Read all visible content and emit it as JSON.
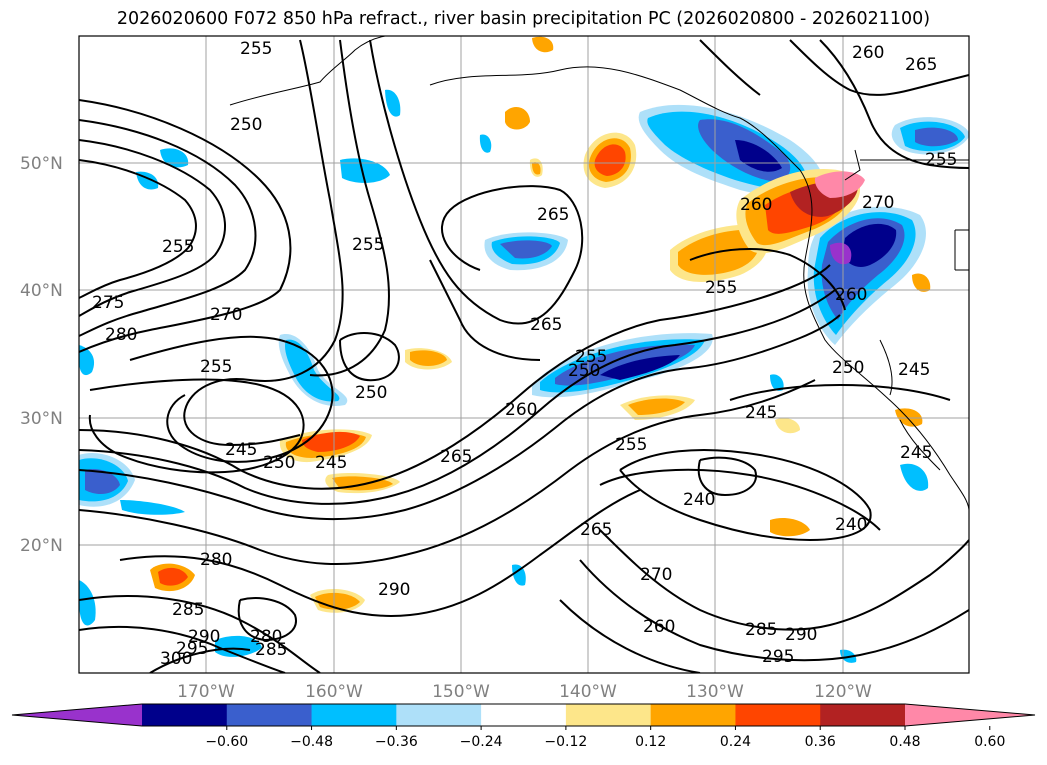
{
  "title": "2026020600 F072 850 hPa refract., river basin precipitation PC (2026020800 - 2026021100)",
  "lon_labels": [
    "170°W",
    "160°W",
    "150°W",
    "140°W",
    "130°W",
    "120°W"
  ],
  "lat_labels": [
    "50°N",
    "40°N",
    "30°N",
    "20°N"
  ],
  "contour_labels": [
    "255",
    "250",
    "260",
    "265",
    "265",
    "255",
    "255",
    "270",
    "280",
    "275",
    "250",
    "255",
    "245",
    "250",
    "245",
    "265",
    "250",
    "255",
    "260",
    "265",
    "240",
    "245",
    "255",
    "280",
    "285",
    "290",
    "295",
    "300",
    "290",
    "280",
    "285",
    "270",
    "260",
    "265",
    "285",
    "290",
    "295",
    "240",
    "260",
    "255",
    "250",
    "245",
    "270",
    "260",
    "255",
    "245"
  ],
  "colorbar": {
    "ticks": [
      "−0.60",
      "−0.48",
      "−0.36",
      "−0.24",
      "−0.12",
      "0.12",
      "0.24",
      "0.36",
      "0.48",
      "0.60"
    ],
    "colors": [
      "#9932cc",
      "#00008b",
      "#3a5fcd",
      "#00bfff",
      "#aee0f9",
      "#ffffff",
      "#fde68a",
      "#ffa500",
      "#ff4500",
      "#b22222",
      "#ff88a8"
    ]
  }
}
